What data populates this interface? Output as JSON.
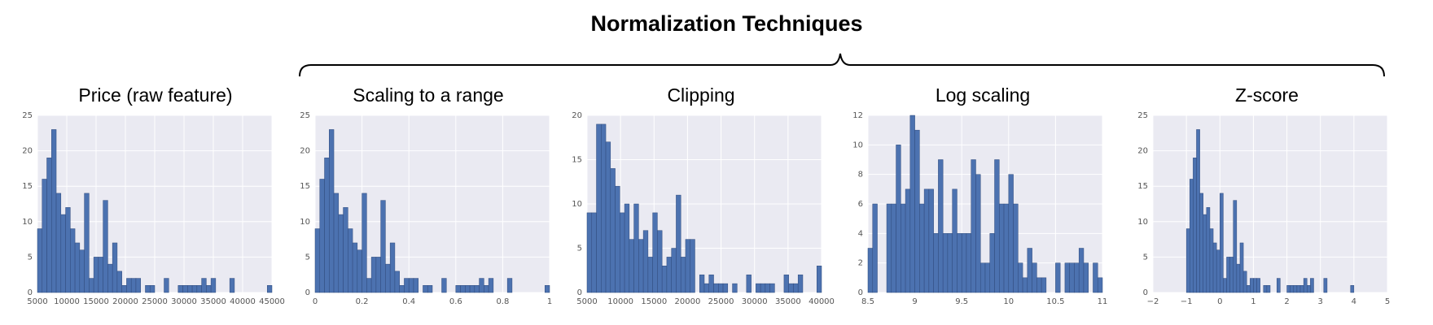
{
  "figure": {
    "title": "Normalization Techniques"
  },
  "style": {
    "panel_bg": "#eaeaf2",
    "grid": "#ffffff",
    "bar": "#4c72b0",
    "bar_edge": "#2f4a7c",
    "tick_text": "#555555"
  },
  "chart_data": [
    {
      "type": "bar",
      "title": "Price (raw feature)",
      "xlim": [
        5000,
        45000
      ],
      "ylim": [
        0,
        25
      ],
      "xticks": [
        5000,
        10000,
        15000,
        20000,
        25000,
        30000,
        35000,
        40000,
        45000
      ],
      "yticks": [
        0,
        5,
        10,
        15,
        20,
        25
      ],
      "bin_start": 5000,
      "bin_width": 800,
      "values": [
        9,
        16,
        19,
        23,
        14,
        11,
        12,
        9,
        7,
        6,
        14,
        2,
        5,
        5,
        13,
        4,
        7,
        3,
        1,
        2,
        2,
        2,
        0,
        1,
        1,
        0,
        0,
        2,
        0,
        0,
        1,
        1,
        1,
        1,
        1,
        2,
        1,
        2,
        0,
        0,
        0,
        2,
        0,
        0,
        0,
        0,
        0,
        0,
        0,
        1
      ]
    },
    {
      "type": "bar",
      "title": "Scaling to a range",
      "xlim": [
        0.0,
        1.0
      ],
      "ylim": [
        0,
        25
      ],
      "xticks": [
        0.0,
        0.2,
        0.4,
        0.6,
        0.8,
        1.0
      ],
      "yticks": [
        0,
        5,
        10,
        15,
        20,
        25
      ],
      "bin_start": 0.0,
      "bin_width": 0.02,
      "values": [
        9,
        16,
        19,
        23,
        14,
        11,
        12,
        9,
        7,
        6,
        14,
        2,
        5,
        5,
        13,
        4,
        7,
        3,
        1,
        2,
        2,
        2,
        0,
        1,
        1,
        0,
        0,
        2,
        0,
        0,
        1,
        1,
        1,
        1,
        1,
        2,
        1,
        2,
        0,
        0,
        0,
        2,
        0,
        0,
        0,
        0,
        0,
        0,
        0,
        1
      ]
    },
    {
      "type": "bar",
      "title": "Clipping",
      "xlim": [
        5000,
        40000
      ],
      "ylim": [
        0,
        20
      ],
      "xticks": [
        5000,
        10000,
        15000,
        20000,
        25000,
        30000,
        35000,
        40000
      ],
      "yticks": [
        0,
        5,
        10,
        15,
        20
      ],
      "bin_start": 5000,
      "bin_width": 700,
      "values": [
        9,
        9,
        19,
        19,
        17,
        14,
        12,
        9,
        10,
        6,
        10,
        6,
        7,
        4,
        9,
        7,
        3,
        4,
        5,
        11,
        4,
        6,
        6,
        0,
        2,
        1,
        2,
        1,
        1,
        1,
        0,
        1,
        0,
        0,
        2,
        0,
        1,
        1,
        1,
        1,
        0,
        0,
        2,
        1,
        1,
        2,
        0,
        0,
        0,
        3
      ]
    },
    {
      "type": "bar",
      "title": "Log scaling",
      "xlim": [
        8.5,
        11.0
      ],
      "ylim": [
        0,
        12
      ],
      "xticks": [
        8.5,
        9.0,
        9.5,
        10.0,
        10.5,
        11.0
      ],
      "yticks": [
        0,
        2,
        4,
        6,
        8,
        10,
        12
      ],
      "bin_start": 8.5,
      "bin_width": 0.05,
      "values": [
        3,
        6,
        0,
        0,
        6,
        6,
        10,
        6,
        7,
        12,
        11,
        6,
        7,
        7,
        4,
        9,
        4,
        4,
        7,
        4,
        4,
        4,
        9,
        8,
        2,
        2,
        4,
        9,
        6,
        6,
        8,
        6,
        2,
        1,
        3,
        2,
        1,
        1,
        0,
        0,
        2,
        0,
        2,
        2,
        2,
        3,
        2,
        0,
        2,
        1
      ]
    },
    {
      "type": "bar",
      "title": "Z-score",
      "xlim": [
        -2,
        5
      ],
      "ylim": [
        0,
        25
      ],
      "xticks": [
        -2,
        -1,
        0,
        1,
        2,
        3,
        4,
        5
      ],
      "yticks": [
        0,
        5,
        10,
        15,
        20,
        25
      ],
      "bin_start": -1.0,
      "bin_width": 0.1,
      "values": [
        9,
        16,
        19,
        23,
        14,
        11,
        12,
        9,
        7,
        6,
        14,
        2,
        5,
        5,
        13,
        4,
        7,
        3,
        1,
        2,
        2,
        2,
        0,
        1,
        1,
        0,
        0,
        2,
        0,
        0,
        1,
        1,
        1,
        1,
        1,
        2,
        1,
        2,
        0,
        0,
        0,
        2,
        0,
        0,
        0,
        0,
        0,
        0,
        0,
        1
      ]
    }
  ]
}
